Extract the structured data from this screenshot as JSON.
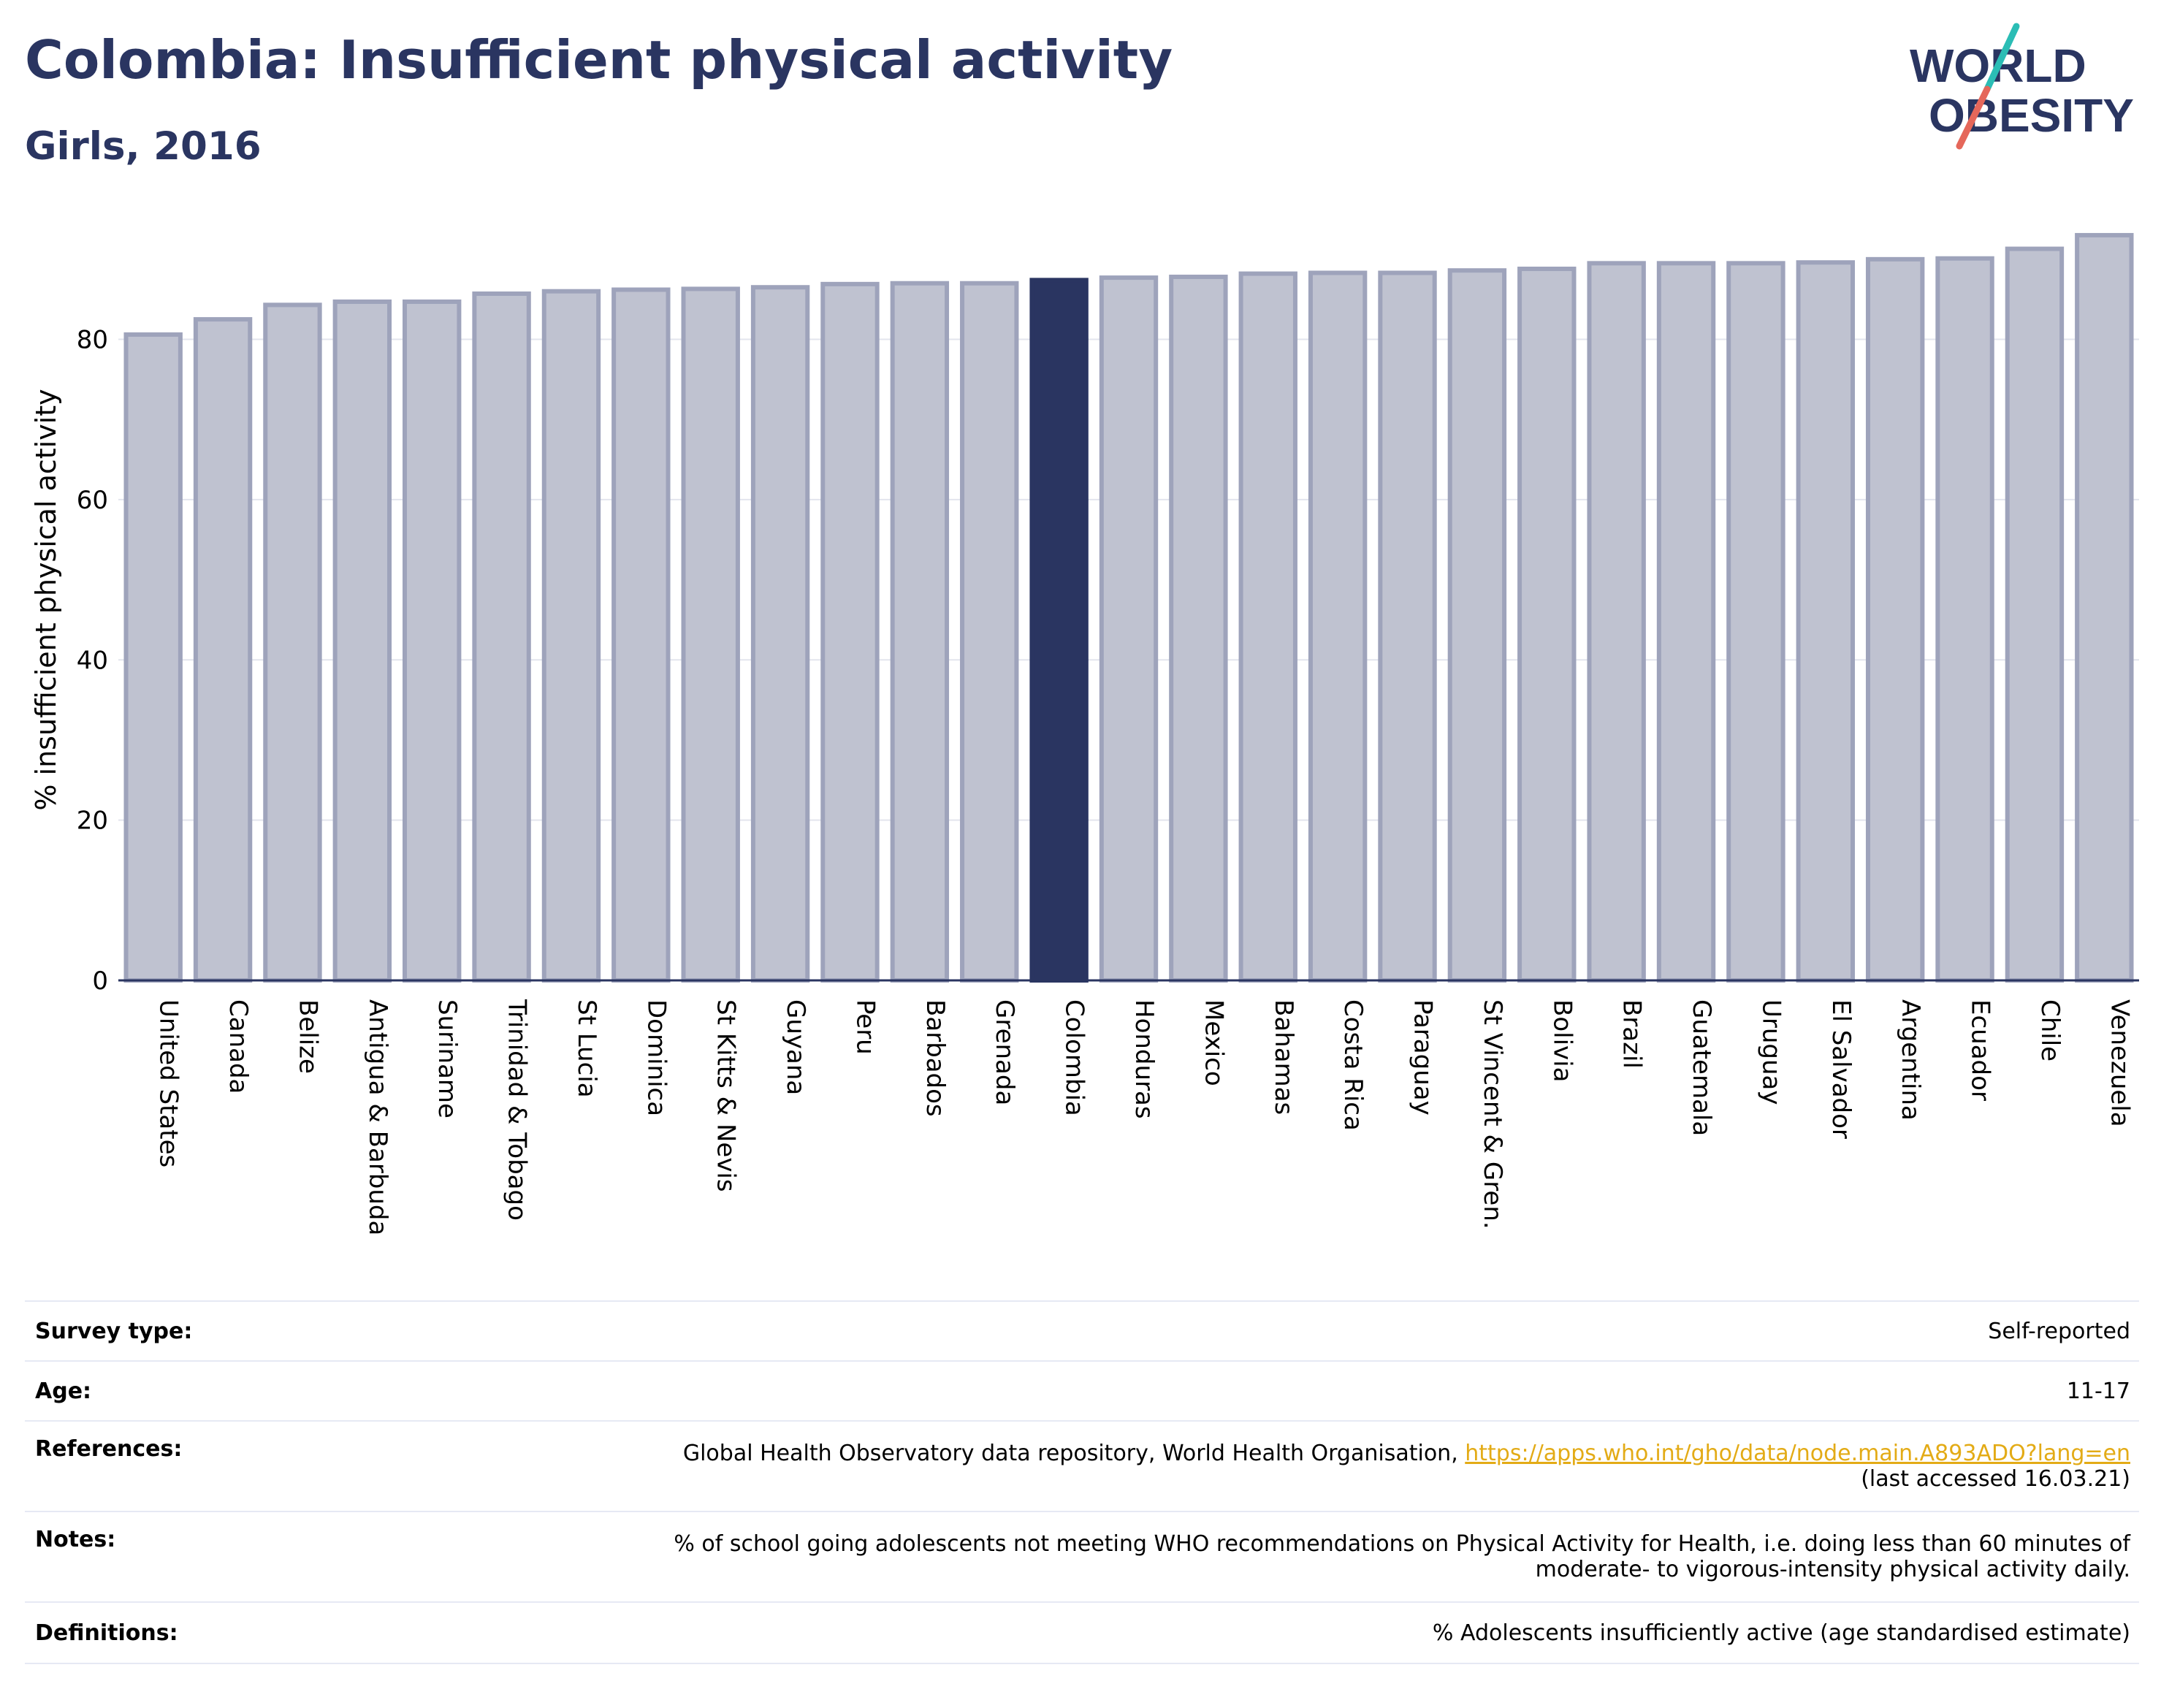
{
  "header": {
    "title": "Colombia: Insufficient physical activity",
    "subtitle": "Girls, 2016",
    "logo_line1": "WORLD",
    "logo_line2": "OBESITY"
  },
  "colors": {
    "highlight_bar": "#2a3561",
    "default_bar_fill": "#bfc2d0",
    "default_bar_stroke": "#9ea3bb",
    "title": "#2a3561",
    "link": "#e3ab16",
    "logo_slash_teal": "#2bbdb5",
    "logo_slash_red": "#e5675a"
  },
  "chart_data": {
    "type": "bar",
    "title": "Colombia: Insufficient physical activity",
    "subtitle": "Girls, 2016",
    "xlabel": "",
    "ylabel": "% insufficient physical activity",
    "ylim": [
      0,
      95
    ],
    "yticks": [
      0,
      20,
      40,
      60,
      80
    ],
    "grid": true,
    "highlight": "Colombia",
    "categories": [
      "United States",
      "Canada",
      "Belize",
      "Antigua & Barbuda",
      "Suriname",
      "Trinidad & Tobago",
      "St Lucia",
      "Dominica",
      "St Kitts & Nevis",
      "Guyana",
      "Peru",
      "Barbados",
      "Grenada",
      "Colombia",
      "Honduras",
      "Mexico",
      "Bahamas",
      "Costa Rica",
      "Paraguay",
      "St Vincent & Gren.",
      "Bolivia",
      "Brazil",
      "Guatemala",
      "Uruguay",
      "El Salvador",
      "Argentina",
      "Ecuador",
      "Chile",
      "Venezuela"
    ],
    "values": [
      80.6,
      82.5,
      84.3,
      84.7,
      84.7,
      85.7,
      86.0,
      86.2,
      86.3,
      86.5,
      86.9,
      87.0,
      87.0,
      87.4,
      87.7,
      87.8,
      88.2,
      88.3,
      88.3,
      88.6,
      88.8,
      89.5,
      89.5,
      89.5,
      89.6,
      90.0,
      90.1,
      91.3,
      93.0
    ]
  },
  "info_table": {
    "survey_type_label": "Survey type:",
    "survey_type_value": "Self-reported",
    "age_label": "Age:",
    "age_value": "11-17",
    "references_label": "References:",
    "references_text": "Global Health Observatory data repository, World Health Organisation, ",
    "references_link": "https://apps.who.int/gho/data/node.main.A893ADO?lang=en",
    "references_accessed": "(last accessed 16.03.21)",
    "notes_label": "Notes:",
    "notes_line1": "% of school going adolescents not meeting WHO recommendations on Physical Activity for Health, i.e. doing less than 60 minutes of",
    "notes_line2": "moderate- to vigorous-intensity physical activity daily.",
    "definitions_label": "Definitions:",
    "definitions_value": "% Adolescents insufficiently active (age standardised estimate)"
  }
}
